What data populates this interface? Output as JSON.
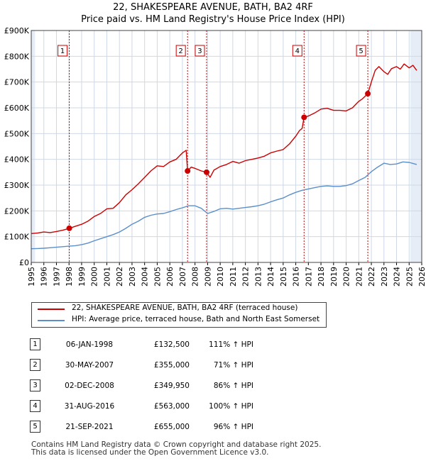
{
  "title_line1": "22, SHAKESPEARE AVENUE, BATH, BA2 4RF",
  "title_line2": "Price paid vs. HM Land Registry's House Price Index (HPI)",
  "colors": {
    "property": "#cc0000",
    "hpi": "#5b8fc9",
    "grid": "#cfd8e6",
    "shade": "#e6edf7",
    "marker_line": "#cc0000"
  },
  "legend": {
    "property_label": "22, SHAKESPEARE AVENUE, BATH, BA2 4RF (terraced house)",
    "hpi_label": "HPI: Average price, terraced house, Bath and North East Somerset"
  },
  "sales": [
    {
      "num": "1",
      "date": "06-JAN-1998",
      "price": "£132,500",
      "hpi": "111% ↑ HPI"
    },
    {
      "num": "2",
      "date": "30-MAY-2007",
      "price": "£355,000",
      "hpi": "71% ↑ HPI"
    },
    {
      "num": "3",
      "date": "02-DEC-2008",
      "price": "£349,950",
      "hpi": "86% ↑ HPI"
    },
    {
      "num": "4",
      "date": "31-AUG-2016",
      "price": "£563,000",
      "hpi": "100% ↑ HPI"
    },
    {
      "num": "5",
      "date": "21-SEP-2021",
      "price": "£655,000",
      "hpi": "96% ↑ HPI"
    }
  ],
  "footer_line1": "Contains HM Land Registry data © Crown copyright and database right 2025.",
  "footer_line2": "This data is licensed under the Open Government Licence v3.0.",
  "chart_data": {
    "type": "line",
    "title": "22, SHAKESPEARE AVENUE, BATH, BA2 4RF",
    "subtitle": "Price paid vs. HM Land Registry's House Price Index (HPI)",
    "xlabel": "",
    "ylabel": "",
    "xlim": [
      1995,
      2026
    ],
    "ylim": [
      0,
      900000
    ],
    "grid": true,
    "legend_position": "below",
    "x_ticks": [
      "1995",
      "1996",
      "1997",
      "1998",
      "1999",
      "2000",
      "2001",
      "2002",
      "2003",
      "2004",
      "2005",
      "2006",
      "2007",
      "2008",
      "2009",
      "2010",
      "2011",
      "2012",
      "2013",
      "2014",
      "2015",
      "2016",
      "2017",
      "2018",
      "2019",
      "2020",
      "2021",
      "2022",
      "2023",
      "2024",
      "2025",
      "2026"
    ],
    "y_ticks": [
      {
        "value": 0,
        "label": "£0"
      },
      {
        "value": 100000,
        "label": "£100K"
      },
      {
        "value": 200000,
        "label": "£200K"
      },
      {
        "value": 300000,
        "label": "£300K"
      },
      {
        "value": 400000,
        "label": "£400K"
      },
      {
        "value": 500000,
        "label": "£500K"
      },
      {
        "value": 600000,
        "label": "£600K"
      },
      {
        "value": 700000,
        "label": "£700K"
      },
      {
        "value": 800000,
        "label": "£800K"
      },
      {
        "value": 900000,
        "label": "£900K"
      }
    ],
    "shaded_ranges": [
      [
        1995.0,
        1995.3
      ],
      [
        2025.1,
        2026.0
      ]
    ],
    "series": [
      {
        "name": "22, SHAKESPEARE AVENUE, BATH, BA2 4RF (terraced house)",
        "color": "#cc0000",
        "points": [
          [
            1995.0,
            112000
          ],
          [
            1995.5,
            114000
          ],
          [
            1996.0,
            118000
          ],
          [
            1996.5,
            116000
          ],
          [
            1997.0,
            120000
          ],
          [
            1997.5,
            125000
          ],
          [
            1998.02,
            132500
          ],
          [
            1998.5,
            140000
          ],
          [
            1999.0,
            148000
          ],
          [
            1999.5,
            160000
          ],
          [
            2000.0,
            178000
          ],
          [
            2000.5,
            190000
          ],
          [
            2001.0,
            208000
          ],
          [
            2001.5,
            210000
          ],
          [
            2002.0,
            232000
          ],
          [
            2002.5,
            262000
          ],
          [
            2003.0,
            282000
          ],
          [
            2003.5,
            305000
          ],
          [
            2004.0,
            330000
          ],
          [
            2004.5,
            355000
          ],
          [
            2005.0,
            375000
          ],
          [
            2005.5,
            372000
          ],
          [
            2006.0,
            390000
          ],
          [
            2006.5,
            400000
          ],
          [
            2007.0,
            425000
          ],
          [
            2007.3,
            435000
          ],
          [
            2007.41,
            355000
          ],
          [
            2007.7,
            370000
          ],
          [
            2008.0,
            365000
          ],
          [
            2008.5,
            355000
          ],
          [
            2008.92,
            349950
          ],
          [
            2009.2,
            330000
          ],
          [
            2009.5,
            358000
          ],
          [
            2010.0,
            372000
          ],
          [
            2010.5,
            380000
          ],
          [
            2011.0,
            392000
          ],
          [
            2011.5,
            385000
          ],
          [
            2012.0,
            395000
          ],
          [
            2012.5,
            400000
          ],
          [
            2013.0,
            405000
          ],
          [
            2013.5,
            412000
          ],
          [
            2014.0,
            425000
          ],
          [
            2014.5,
            432000
          ],
          [
            2015.0,
            438000
          ],
          [
            2015.5,
            460000
          ],
          [
            2016.0,
            490000
          ],
          [
            2016.3,
            512000
          ],
          [
            2016.5,
            520000
          ],
          [
            2016.66,
            563000
          ],
          [
            2017.0,
            568000
          ],
          [
            2017.5,
            580000
          ],
          [
            2018.0,
            595000
          ],
          [
            2018.5,
            598000
          ],
          [
            2019.0,
            590000
          ],
          [
            2019.5,
            590000
          ],
          [
            2020.0,
            588000
          ],
          [
            2020.5,
            600000
          ],
          [
            2020.8,
            615000
          ],
          [
            2021.0,
            625000
          ],
          [
            2021.3,
            635000
          ],
          [
            2021.72,
            655000
          ],
          [
            2022.0,
            700000
          ],
          [
            2022.3,
            745000
          ],
          [
            2022.6,
            760000
          ],
          [
            2023.0,
            740000
          ],
          [
            2023.3,
            730000
          ],
          [
            2023.6,
            752000
          ],
          [
            2024.0,
            760000
          ],
          [
            2024.3,
            750000
          ],
          [
            2024.6,
            770000
          ],
          [
            2025.0,
            755000
          ],
          [
            2025.3,
            765000
          ],
          [
            2025.6,
            745000
          ]
        ]
      },
      {
        "name": "HPI: Average price, terraced house, Bath and North East Somerset",
        "color": "#5b8fc9",
        "points": [
          [
            1995.0,
            53000
          ],
          [
            1995.5,
            54000
          ],
          [
            1996.0,
            55000
          ],
          [
            1996.5,
            57000
          ],
          [
            1997.0,
            59000
          ],
          [
            1997.5,
            61000
          ],
          [
            1998.0,
            63000
          ],
          [
            1998.5,
            65000
          ],
          [
            1999.0,
            69000
          ],
          [
            1999.5,
            75000
          ],
          [
            2000.0,
            84000
          ],
          [
            2000.5,
            92000
          ],
          [
            2001.0,
            100000
          ],
          [
            2001.5,
            108000
          ],
          [
            2002.0,
            118000
          ],
          [
            2002.5,
            132000
          ],
          [
            2003.0,
            148000
          ],
          [
            2003.5,
            160000
          ],
          [
            2004.0,
            175000
          ],
          [
            2004.5,
            183000
          ],
          [
            2005.0,
            188000
          ],
          [
            2005.5,
            190000
          ],
          [
            2006.0,
            197000
          ],
          [
            2006.5,
            205000
          ],
          [
            2007.0,
            212000
          ],
          [
            2007.5,
            220000
          ],
          [
            2008.0,
            220000
          ],
          [
            2008.5,
            210000
          ],
          [
            2009.0,
            190000
          ],
          [
            2009.5,
            198000
          ],
          [
            2010.0,
            208000
          ],
          [
            2010.5,
            210000
          ],
          [
            2011.0,
            207000
          ],
          [
            2011.5,
            210000
          ],
          [
            2012.0,
            213000
          ],
          [
            2012.5,
            216000
          ],
          [
            2013.0,
            220000
          ],
          [
            2013.5,
            226000
          ],
          [
            2014.0,
            235000
          ],
          [
            2014.5,
            243000
          ],
          [
            2015.0,
            250000
          ],
          [
            2015.5,
            262000
          ],
          [
            2016.0,
            272000
          ],
          [
            2016.5,
            280000
          ],
          [
            2017.0,
            285000
          ],
          [
            2017.5,
            290000
          ],
          [
            2018.0,
            295000
          ],
          [
            2018.5,
            297000
          ],
          [
            2019.0,
            295000
          ],
          [
            2019.5,
            295000
          ],
          [
            2020.0,
            298000
          ],
          [
            2020.5,
            305000
          ],
          [
            2021.0,
            318000
          ],
          [
            2021.5,
            330000
          ],
          [
            2022.0,
            352000
          ],
          [
            2022.5,
            370000
          ],
          [
            2023.0,
            385000
          ],
          [
            2023.5,
            380000
          ],
          [
            2024.0,
            382000
          ],
          [
            2024.5,
            390000
          ],
          [
            2025.0,
            388000
          ],
          [
            2025.6,
            380000
          ]
        ]
      }
    ],
    "sale_markers": [
      {
        "num": "1",
        "x": 1998.02,
        "y": 132500
      },
      {
        "num": "2",
        "x": 2007.41,
        "y": 355000
      },
      {
        "num": "3",
        "x": 2008.92,
        "y": 349950
      },
      {
        "num": "4",
        "x": 2016.66,
        "y": 563000
      },
      {
        "num": "5",
        "x": 2021.72,
        "y": 655000
      }
    ]
  }
}
